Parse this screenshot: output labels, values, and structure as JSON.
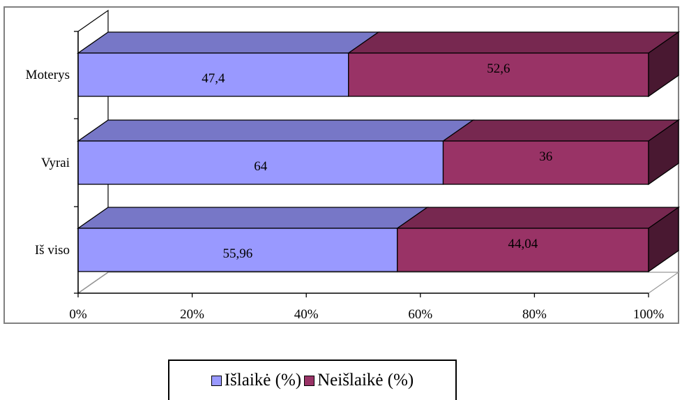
{
  "chart_data": {
    "type": "bar",
    "orientation": "horizontal",
    "stacking": "percent",
    "style": "3d",
    "categories": [
      "Moterys",
      "Vyrai",
      "Iš viso"
    ],
    "series": [
      {
        "name": "Išlaikė (%)",
        "values": [
          47.4,
          64,
          55.96
        ],
        "labels": [
          "47,4",
          "64",
          "55,96"
        ],
        "color": "#9999FF"
      },
      {
        "name": "Neišlaikė (%)",
        "values": [
          52.6,
          36,
          44.04
        ],
        "labels": [
          "52,6",
          "36",
          "44,04"
        ],
        "color": "#993366"
      }
    ],
    "xticks": [
      "0%",
      "20%",
      "40%",
      "60%",
      "80%",
      "100%"
    ],
    "xlim": [
      0,
      100
    ],
    "grid": false,
    "legend_position": "bottom",
    "title": "",
    "xlabel": "",
    "ylabel": ""
  }
}
